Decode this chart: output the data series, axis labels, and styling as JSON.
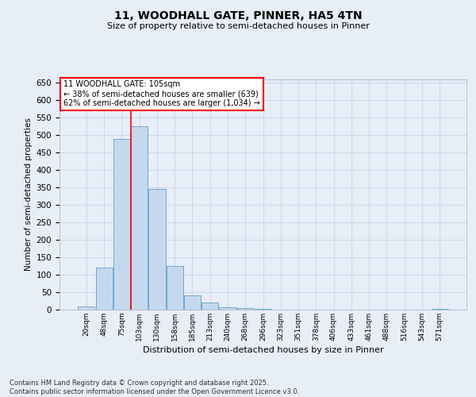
{
  "title": "11, WOODHALL GATE, PINNER, HA5 4TN",
  "subtitle": "Size of property relative to semi-detached houses in Pinner",
  "xlabel": "Distribution of semi-detached houses by size in Pinner",
  "ylabel": "Number of semi-detached properties",
  "categories": [
    "20sqm",
    "48sqm",
    "75sqm",
    "103sqm",
    "130sqm",
    "158sqm",
    "185sqm",
    "213sqm",
    "240sqm",
    "268sqm",
    "296sqm",
    "323sqm",
    "351sqm",
    "378sqm",
    "406sqm",
    "433sqm",
    "461sqm",
    "488sqm",
    "516sqm",
    "543sqm",
    "571sqm"
  ],
  "values": [
    10,
    120,
    490,
    525,
    345,
    125,
    42,
    20,
    7,
    5,
    2,
    0,
    0,
    0,
    0,
    0,
    0,
    0,
    0,
    0,
    3
  ],
  "bar_color": "#c5d9ee",
  "bar_edge_color": "#6fa8d0",
  "property_bin_index": 3,
  "annotation_line1": "11 WOODHALL GATE: 105sqm",
  "annotation_line2": "← 38% of semi-detached houses are smaller (639)",
  "annotation_line3": "62% of semi-detached houses are larger (1,034) →",
  "ylim_min": 0,
  "ylim_max": 660,
  "yticks": [
    0,
    50,
    100,
    150,
    200,
    250,
    300,
    350,
    400,
    450,
    500,
    550,
    600,
    650
  ],
  "background_color": "#e8eef8",
  "grid_color": "#d0d8e8",
  "title_fontsize": 10,
  "subtitle_fontsize": 8,
  "footer_line1": "Contains HM Land Registry data © Crown copyright and database right 2025.",
  "footer_line2": "Contains public sector information licensed under the Open Government Licence v3.0."
}
